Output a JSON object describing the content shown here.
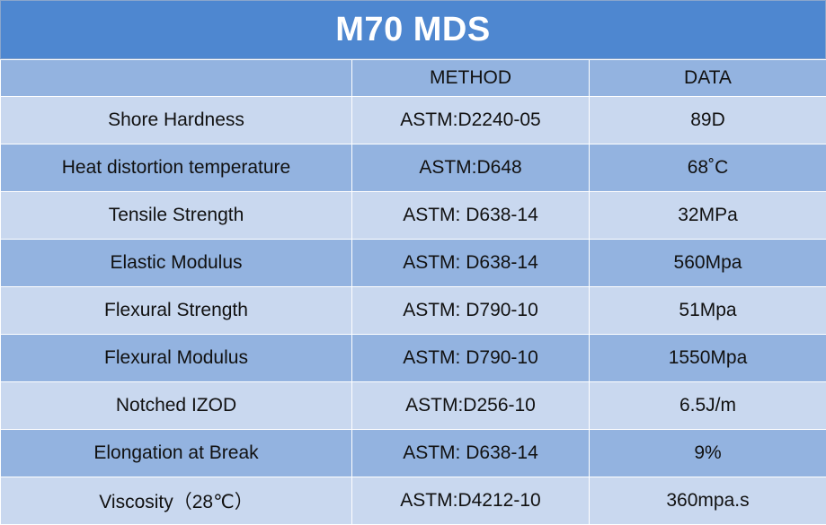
{
  "title": "M70 MDS",
  "header": {
    "property": "",
    "method": "METHOD",
    "data": "DATA"
  },
  "rows": [
    {
      "property": "Shore Hardness",
      "method": "ASTM:D2240-05",
      "value": "89D"
    },
    {
      "property": "Heat distortion temperature",
      "method": "ASTM:D648",
      "value": "68˚C"
    },
    {
      "property": "Tensile Strength",
      "method": "ASTM: D638-14",
      "value": "32MPa"
    },
    {
      "property": "Elastic Modulus",
      "method": "ASTM: D638-14",
      "value": "560Mpa"
    },
    {
      "property": "Flexural Strength",
      "method": "ASTM: D790-10",
      "value": "51Mpa"
    },
    {
      "property": "Flexural Modulus",
      "method": "ASTM: D790-10",
      "value": "1550Mpa"
    },
    {
      "property": "Notched IZOD",
      "method": "ASTM:D256-10",
      "value": "6.5J/m"
    },
    {
      "property": "Elongation at Break",
      "method": "ASTM: D638-14",
      "value": "9%"
    },
    {
      "property": "Viscosity（28℃）",
      "method": "ASTM:D4212-10",
      "value": "360mpa.s"
    }
  ],
  "colors": {
    "title_bg": "#4e87d0",
    "row_light": "#c9d8ef",
    "row_dark": "#93b3e0"
  }
}
